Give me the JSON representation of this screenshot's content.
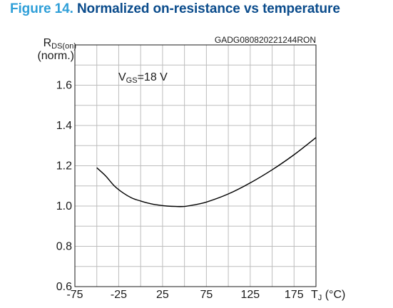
{
  "figure": {
    "number": "Figure 14.",
    "title": "Normalized on-resistance vs temperature",
    "code": "GADG080820221244RON"
  },
  "chart_data": {
    "type": "line",
    "title": "Normalized on-resistance vs temperature",
    "annotation": {
      "main": "V",
      "sub": "GS",
      "rest": "=18 V"
    },
    "ylabel": {
      "main": "R",
      "sub": "DS(on)",
      "line2": "(norm.)"
    },
    "xlabel": {
      "main": "T",
      "sub": "J",
      "rest": " (°C)"
    },
    "xlim": [
      -75,
      200
    ],
    "ylim": [
      0.6,
      1.8
    ],
    "x_ticks": [
      -75,
      -25,
      25,
      75,
      125,
      175
    ],
    "x_tick_labels": [
      "-75",
      "-25",
      "25",
      "75",
      "125",
      "175"
    ],
    "y_ticks": [
      0.6,
      0.8,
      1.0,
      1.2,
      1.4,
      1.6
    ],
    "y_tick_labels": [
      "0.6",
      "0.8",
      "1.0",
      "1.2",
      "1.4",
      "1.6"
    ],
    "grid": true,
    "colors": {
      "line": "#000000",
      "grid": "#bdbdbd",
      "title_number": "#2f9fd8",
      "title_text": "#0b4c8c"
    },
    "series": [
      {
        "x": [
          -50,
          -40,
          -30,
          -20,
          -10,
          0,
          10,
          20,
          30,
          40,
          50,
          60,
          75,
          100,
          125,
          150,
          175,
          200
        ],
        "y": [
          1.19,
          1.15,
          1.1,
          1.065,
          1.04,
          1.025,
          1.013,
          1.005,
          1.0,
          0.998,
          0.998,
          1.005,
          1.02,
          1.06,
          1.115,
          1.18,
          1.255,
          1.34
        ]
      }
    ]
  }
}
